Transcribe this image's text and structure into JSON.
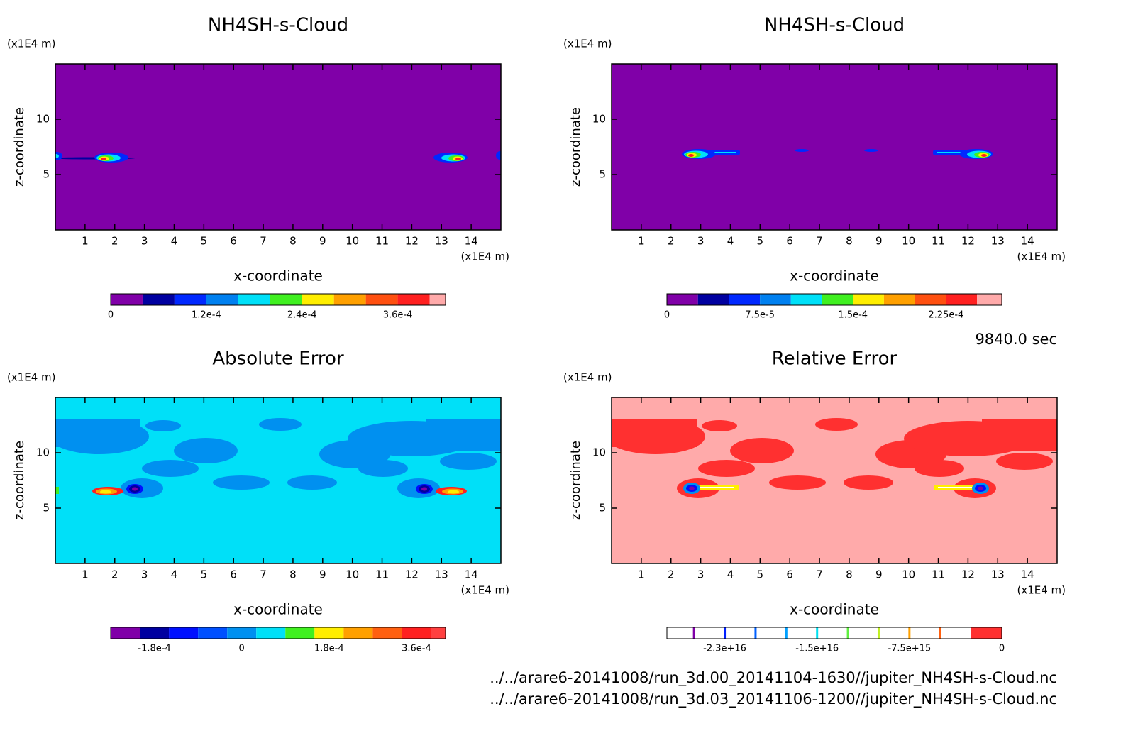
{
  "chart_data": [
    {
      "type": "contour",
      "title": "NH4SH-s-Cloud",
      "x_label": "x-coordinate",
      "y_label": "z-coordinate",
      "x_unit": "(x1E4 m)",
      "y_unit": "(x1E4 m)",
      "xlim": [
        0,
        15
      ],
      "ylim": [
        0,
        15
      ],
      "xticks": [
        1,
        2,
        3,
        4,
        5,
        6,
        7,
        8,
        9,
        10,
        11,
        12,
        13,
        14
      ],
      "yticks": [
        5,
        10
      ],
      "colorbar": {
        "clim": [
          0,
          0.00042
        ],
        "bounds": [
          0,
          4e-05,
          8e-05,
          0.00012,
          0.00016,
          0.0002,
          0.00024,
          0.00028,
          0.00032,
          0.00036,
          0.0004,
          0.00042
        ],
        "colors": [
          "#8000a8",
          "#0000a0",
          "#0028ff",
          "#0080f0",
          "#00e0f8",
          "#40f020",
          "#ffee00",
          "#ffa000",
          "#ff5010",
          "#ff2020",
          "#ffaaaa"
        ],
        "ticks": [
          0,
          {
            "value": 0.00012,
            "label": "1.2e-4"
          },
          {
            "value": 0.00024,
            "label": "2.4e-4"
          },
          {
            "value": 0.00036,
            "label": "3.6e-4"
          }
        ]
      }
    },
    {
      "type": "contour",
      "title": "NH4SH-s-Cloud",
      "x_label": "x-coordinate",
      "y_label": "z-coordinate",
      "x_unit": "(x1E4 m)",
      "y_unit": "(x1E4 m)",
      "xlim": [
        0,
        15
      ],
      "ylim": [
        0,
        15
      ],
      "xticks": [
        1,
        2,
        3,
        4,
        5,
        6,
        7,
        8,
        9,
        10,
        11,
        12,
        13,
        14
      ],
      "yticks": [
        5,
        10
      ],
      "colorbar": {
        "clim": [
          0,
          0.00027
        ],
        "bounds": [
          0,
          2.5e-05,
          5e-05,
          7.5e-05,
          0.0001,
          0.000125,
          0.00015,
          0.000175,
          0.0002,
          0.000225,
          0.00025,
          0.00027
        ],
        "colors": [
          "#8000a8",
          "#0000a0",
          "#0028ff",
          "#0080f0",
          "#00e0f8",
          "#40f020",
          "#ffee00",
          "#ffa000",
          "#ff5010",
          "#ff2020",
          "#ffaaaa"
        ],
        "ticks": [
          0,
          {
            "value": 7.5e-05,
            "label": "7.5e-5"
          },
          {
            "value": 0.00015,
            "label": "1.5e-4"
          },
          {
            "value": 0.000225,
            "label": "2.25e-4"
          }
        ]
      }
    },
    {
      "type": "contour",
      "title": "Absolute Error",
      "x_label": "x-coordinate",
      "y_label": "z-coordinate",
      "x_unit": "(x1E4 m)",
      "y_unit": "(x1E4 m)",
      "xlim": [
        0,
        15
      ],
      "ylim": [
        0,
        15
      ],
      "xticks": [
        1,
        2,
        3,
        4,
        5,
        6,
        7,
        8,
        9,
        10,
        11,
        12,
        13,
        14
      ],
      "yticks": [
        5,
        10
      ],
      "colorbar": {
        "clim": [
          -0.00027,
          0.00042
        ],
        "bounds": [
          -0.00027,
          -0.00021,
          -0.00015,
          -9e-05,
          -3e-05,
          3e-05,
          9e-05,
          0.00015,
          0.00021,
          0.00027,
          0.00033,
          0.00039,
          0.00042
        ],
        "colors": [
          "#8000a8",
          "#0000a0",
          "#0010ff",
          "#0050ff",
          "#0090f0",
          "#00e0f8",
          "#40f020",
          "#ffee00",
          "#ffa000",
          "#ff6010",
          "#ff2020",
          "#ff4040"
        ],
        "ticks": [
          {
            "value": -0.00018,
            "label": "-1.8e-4"
          },
          0,
          {
            "value": 0.00018,
            "label": "1.8e-4"
          },
          {
            "value": 0.00036,
            "label": "3.6e-4"
          }
        ]
      }
    },
    {
      "type": "contour",
      "title": "Relative Error",
      "x_label": "x-coordinate",
      "y_label": "z-coordinate",
      "x_unit": "(x1E4 m)",
      "y_unit": "(x1E4 m)",
      "xlim": [
        0,
        15
      ],
      "ylim": [
        0,
        15
      ],
      "xticks": [
        1,
        2,
        3,
        4,
        5,
        6,
        7,
        8,
        9,
        10,
        11,
        12,
        13,
        14
      ],
      "yticks": [
        5,
        10
      ],
      "colorbar": {
        "clim": [
          -2.72e+16,
          0
        ],
        "bounds": [
          -2.72e+16,
          -2.5e+16,
          -2.25e+16,
          -2e+16,
          -1.75e+16,
          -1.5e+16,
          -1.25e+16,
          -1e+16,
          -7500000000000000.0,
          -5000000000000000.0,
          -2500000000000000.0,
          0
        ],
        "colors": [
          "#ffffff",
          "#ffffff",
          "#ffffff",
          "#ffffff",
          "#ffffff",
          "#ffffff",
          "#ffffff",
          "#ffffff",
          "#ffffff",
          "#ffffff",
          "#ff3030"
        ],
        "line_colors": [
          "#8000a8",
          "#0020ff",
          "#0060ff",
          "#00a0ff",
          "#00e0f0",
          "#60f040",
          "#c0f020",
          "#ffa000",
          "#ff6010"
        ],
        "ticks": [
          {
            "value": -2.25e+16,
            "label": "-2.3e+16"
          },
          {
            "value": -1.5e+16,
            "label": "-1.5e+16"
          },
          {
            "value": -7500000000000000.0,
            "label": "-7.5e+15"
          },
          0
        ]
      }
    }
  ],
  "time_label": "9840.0 sec",
  "files": [
    "../../arare6-20141008/run_3d.00_20141104-1630//jupiter_NH4SH-s-Cloud.nc",
    "../../arare6-20141008/run_3d.03_20141106-1200//jupiter_NH4SH-s-Cloud.nc"
  ]
}
